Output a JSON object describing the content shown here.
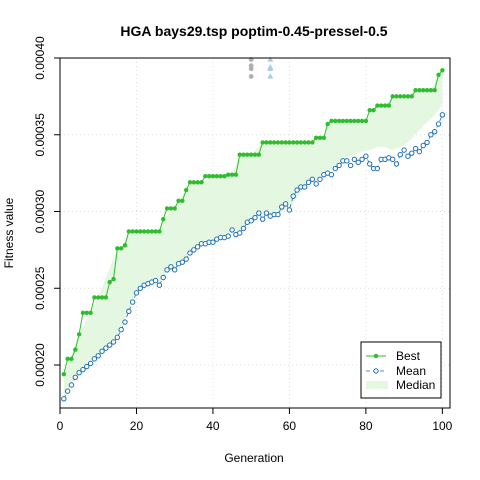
{
  "chart_data": {
    "type": "line",
    "title": "HGA bays29.tsp poptim-0.45-pressel-0.5",
    "xlabel": "Generation",
    "ylabel": "Fitness value",
    "xlim": [
      0,
      102
    ],
    "ylim": [
      0.000172,
      0.0004
    ],
    "x_ticks": [
      0,
      20,
      40,
      60,
      80,
      100
    ],
    "y_ticks": [
      0.0002,
      0.00025,
      0.0003,
      0.00035,
      0.0004
    ],
    "y_tick_labels": [
      "0.00020",
      "0.00025",
      "0.00030",
      "0.00035",
      "0.00040"
    ],
    "grid": true,
    "legend_position": "bottom-right",
    "colors": {
      "best": "#2ebd2e",
      "mean": "#1f6fb5",
      "median_fill": "#e4f7e0",
      "grey_dots": "#b0b0b0",
      "blue_triangles": "#a6cfe6"
    },
    "legend": [
      {
        "label": "Best",
        "style": "line-dot"
      },
      {
        "label": "Mean",
        "style": "dashed-circle"
      },
      {
        "label": "Median",
        "style": "band"
      }
    ],
    "series": [
      {
        "name": "Best",
        "x": [
          1,
          2,
          3,
          4,
          5,
          6,
          7,
          8,
          9,
          10,
          11,
          12,
          13,
          14,
          15,
          16,
          17,
          18,
          19,
          20,
          21,
          22,
          23,
          24,
          25,
          26,
          27,
          28,
          29,
          30,
          31,
          32,
          33,
          34,
          35,
          36,
          37,
          38,
          39,
          40,
          41,
          42,
          43,
          44,
          45,
          46,
          47,
          48,
          49,
          50,
          51,
          52,
          53,
          54,
          55,
          56,
          57,
          58,
          59,
          60,
          61,
          62,
          63,
          64,
          65,
          66,
          67,
          68,
          69,
          70,
          71,
          72,
          73,
          74,
          75,
          76,
          77,
          78,
          79,
          80,
          81,
          82,
          83,
          84,
          85,
          86,
          87,
          88,
          89,
          90,
          91,
          92,
          93,
          94,
          95,
          96,
          97,
          98,
          99,
          100
        ],
        "values": [
          0.000194,
          0.000204,
          0.000204,
          0.00021,
          0.00022,
          0.000234,
          0.000234,
          0.000234,
          0.000244,
          0.000244,
          0.000244,
          0.000244,
          0.000254,
          0.000256,
          0.000276,
          0.000276,
          0.000278,
          0.000287,
          0.000287,
          0.000287,
          0.000287,
          0.000287,
          0.000287,
          0.000287,
          0.000287,
          0.000287,
          0.000295,
          0.000302,
          0.000302,
          0.000302,
          0.000307,
          0.000307,
          0.000314,
          0.000319,
          0.000319,
          0.000319,
          0.000319,
          0.000323,
          0.000323,
          0.000323,
          0.000323,
          0.000323,
          0.000323,
          0.000324,
          0.000324,
          0.000324,
          0.000337,
          0.000337,
          0.000337,
          0.000337,
          0.000337,
          0.000337,
          0.000345,
          0.000345,
          0.000345,
          0.000345,
          0.000345,
          0.000345,
          0.000345,
          0.000345,
          0.000345,
          0.000345,
          0.000345,
          0.000345,
          0.000345,
          0.000345,
          0.000348,
          0.000348,
          0.000348,
          0.000357,
          0.000359,
          0.000359,
          0.000359,
          0.000359,
          0.000359,
          0.000359,
          0.000359,
          0.000359,
          0.000359,
          0.000359,
          0.000366,
          0.000366,
          0.000369,
          0.000369,
          0.000369,
          0.000369,
          0.000375,
          0.000375,
          0.000375,
          0.000375,
          0.000375,
          0.000375,
          0.000379,
          0.000379,
          0.000379,
          0.000379,
          0.000379,
          0.000379,
          0.000389,
          0.000392
        ]
      },
      {
        "name": "Mean",
        "x": [
          1,
          2,
          3,
          4,
          5,
          6,
          7,
          8,
          9,
          10,
          11,
          12,
          13,
          14,
          15,
          16,
          17,
          18,
          19,
          20,
          21,
          22,
          23,
          24,
          25,
          26,
          27,
          28,
          29,
          30,
          31,
          32,
          33,
          34,
          35,
          36,
          37,
          38,
          39,
          40,
          41,
          42,
          43,
          44,
          45,
          46,
          47,
          48,
          49,
          50,
          51,
          52,
          53,
          54,
          55,
          56,
          57,
          58,
          59,
          60,
          61,
          62,
          63,
          64,
          65,
          66,
          67,
          68,
          69,
          70,
          71,
          72,
          73,
          74,
          75,
          76,
          77,
          78,
          79,
          80,
          81,
          82,
          83,
          84,
          85,
          86,
          87,
          88,
          89,
          90,
          91,
          92,
          93,
          94,
          95,
          96,
          97,
          98,
          99,
          100
        ],
        "values": [
          0.000178,
          0.000183,
          0.000187,
          0.000192,
          0.000195,
          0.000197,
          0.000199,
          0.000201,
          0.000204,
          0.000206,
          0.000209,
          0.000211,
          0.000213,
          0.000215,
          0.000218,
          0.000223,
          0.000228,
          0.000235,
          0.000241,
          0.000247,
          0.00025,
          0.000252,
          0.000253,
          0.000254,
          0.000255,
          0.000252,
          0.000257,
          0.000262,
          0.000264,
          0.000262,
          0.000266,
          0.000267,
          0.000269,
          0.000273,
          0.000275,
          0.000277,
          0.000279,
          0.000279,
          0.00028,
          0.00028,
          0.000282,
          0.000283,
          0.000283,
          0.000284,
          0.000288,
          0.000285,
          0.000286,
          0.000289,
          0.000293,
          0.000294,
          0.000296,
          0.000299,
          0.000295,
          0.000299,
          0.000297,
          0.000298,
          0.000298,
          0.000303,
          0.000305,
          0.000301,
          0.00031,
          0.000314,
          0.000316,
          0.000316,
          0.000319,
          0.000321,
          0.000318,
          0.000321,
          0.000324,
          0.000325,
          0.000324,
          0.000328,
          0.00033,
          0.000333,
          0.000333,
          0.00033,
          0.000334,
          0.000332,
          0.000334,
          0.000336,
          0.000331,
          0.000328,
          0.000328,
          0.000334,
          0.000334,
          0.000335,
          0.000334,
          0.000331,
          0.000337,
          0.00034,
          0.000336,
          0.000338,
          0.000341,
          0.000339,
          0.000343,
          0.000345,
          0.00035,
          0.000352,
          0.000357,
          0.000363
        ]
      },
      {
        "name": "Median",
        "x": [
          1,
          5,
          10,
          15,
          16,
          18,
          20,
          25,
          26,
          27,
          30,
          33,
          35,
          37,
          40,
          45,
          47,
          50,
          53,
          55,
          60,
          65,
          67,
          69,
          70,
          75,
          80,
          81,
          83,
          85,
          87,
          90,
          93,
          95,
          97,
          99,
          100
        ],
        "lower": [
          0.000178,
          0.000195,
          0.000206,
          0.000218,
          0.000223,
          0.000235,
          0.000247,
          0.000255,
          0.000253,
          0.000258,
          0.000263,
          0.00027,
          0.000276,
          0.00028,
          0.000281,
          0.000287,
          0.000287,
          0.000295,
          0.000298,
          0.000298,
          0.000302,
          0.000319,
          0.000319,
          0.000325,
          0.000326,
          0.000335,
          0.00034,
          0.00034,
          0.000342,
          0.000342,
          0.00034,
          0.000343,
          0.00035,
          0.000356,
          0.00036,
          0.000366,
          0.00037
        ],
        "upper": [
          0.000194,
          0.00022,
          0.000244,
          0.000276,
          0.000276,
          0.000287,
          0.000287,
          0.000287,
          0.000287,
          0.000295,
          0.000302,
          0.000314,
          0.000319,
          0.000319,
          0.000323,
          0.000324,
          0.000337,
          0.000337,
          0.000345,
          0.000345,
          0.000345,
          0.000345,
          0.000348,
          0.000348,
          0.000357,
          0.000359,
          0.000359,
          0.000366,
          0.000369,
          0.000369,
          0.000375,
          0.000375,
          0.000379,
          0.000379,
          0.000379,
          0.000389,
          0.000392
        ]
      }
    ],
    "outliers": [
      {
        "name": "grey dots",
        "x": [
          50,
          50,
          50,
          50
        ],
        "values": [
          0.000388,
          0.000393,
          0.000395,
          0.000399
        ]
      },
      {
        "name": "blue triangles",
        "x": [
          55,
          55,
          55,
          55
        ],
        "values": [
          0.000388,
          0.000393,
          0.000394,
          0.000399
        ]
      }
    ]
  }
}
